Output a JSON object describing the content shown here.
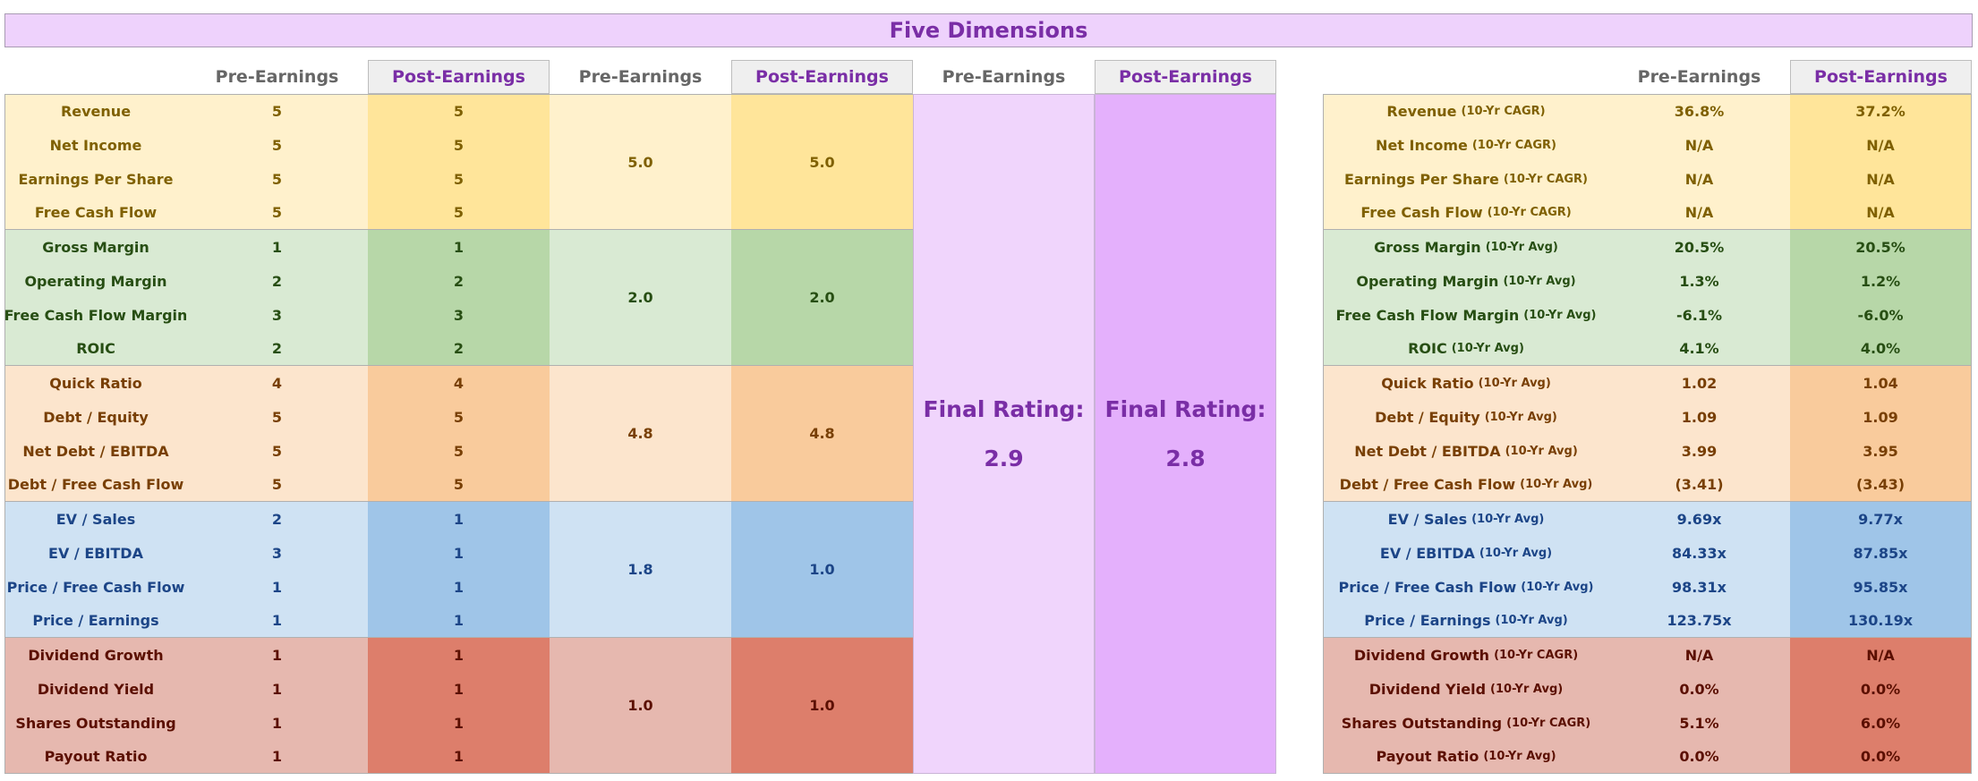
{
  "title": "Five Dimensions",
  "headers": {
    "pre": "Pre-Earnings",
    "post": "Post-Earnings"
  },
  "final_label": "Final Rating:",
  "final_pre": "2.9",
  "final_post": "2.8",
  "groups": [
    {
      "key": "growth",
      "color_a": "#fff1cc",
      "color_b": "#ffe59a",
      "text_color": "#7f6001",
      "avg_pre": "5.0",
      "avg_post": "5.0",
      "rows": [
        {
          "label": "Revenue",
          "pre": "5",
          "post": "5",
          "metric": "Revenue",
          "sub": "(10-Yr CAGR)",
          "val_pre": "36.8%",
          "val_post": "37.2%"
        },
        {
          "label": "Net Income",
          "pre": "5",
          "post": "5",
          "metric": "Net Income",
          "sub": "(10-Yr CAGR)",
          "val_pre": "N/A",
          "val_post": "N/A"
        },
        {
          "label": "Earnings Per Share",
          "pre": "5",
          "post": "5",
          "metric": "Earnings Per Share",
          "sub": "(10-Yr CAGR)",
          "val_pre": "N/A",
          "val_post": "N/A"
        },
        {
          "label": "Free Cash Flow",
          "pre": "5",
          "post": "5",
          "metric": "Free Cash Flow",
          "sub": "(10-Yr CAGR)",
          "val_pre": "N/A",
          "val_post": "N/A"
        }
      ]
    },
    {
      "key": "profitability",
      "color_a": "#d9ead3",
      "color_b": "#b7d7a8",
      "text_color": "#274e13",
      "avg_pre": "2.0",
      "avg_post": "2.0",
      "rows": [
        {
          "label": "Gross Margin",
          "pre": "1",
          "post": "1",
          "metric": "Gross Margin",
          "sub": "(10-Yr Avg)",
          "val_pre": "20.5%",
          "val_post": "20.5%"
        },
        {
          "label": "Operating Margin",
          "pre": "2",
          "post": "2",
          "metric": "Operating Margin",
          "sub": "(10-Yr Avg)",
          "val_pre": "1.3%",
          "val_post": "1.2%"
        },
        {
          "label": "Free Cash Flow Margin",
          "pre": "3",
          "post": "3",
          "metric": "Free Cash Flow Margin",
          "sub": "(10-Yr Avg)",
          "val_pre": "-6.1%",
          "val_post": "-6.0%"
        },
        {
          "label": "ROIC",
          "pre": "2",
          "post": "2",
          "metric": "ROIC",
          "sub": "(10-Yr Avg)",
          "val_pre": "4.1%",
          "val_post": "4.0%"
        }
      ]
    },
    {
      "key": "debt",
      "color_a": "#fce5cd",
      "color_b": "#f9cb9c",
      "text_color": "#783f04",
      "avg_pre": "4.8",
      "avg_post": "4.8",
      "rows": [
        {
          "label": "Quick Ratio",
          "pre": "4",
          "post": "4",
          "metric": "Quick Ratio",
          "sub": "(10-Yr Avg)",
          "val_pre": "1.02",
          "val_post": "1.04"
        },
        {
          "label": "Debt / Equity",
          "pre": "5",
          "post": "5",
          "metric": "Debt / Equity",
          "sub": "(10-Yr Avg)",
          "val_pre": "1.09",
          "val_post": "1.09"
        },
        {
          "label": "Net Debt / EBITDA",
          "pre": "5",
          "post": "5",
          "metric": "Net Debt / EBITDA",
          "sub": "(10-Yr Avg)",
          "val_pre": "3.99",
          "val_post": "3.95"
        },
        {
          "label": "Debt / Free Cash Flow",
          "pre": "5",
          "post": "5",
          "metric": "Debt / Free Cash Flow",
          "sub": "(10-Yr Avg)",
          "val_pre": "(3.41)",
          "val_post": "(3.43)"
        }
      ]
    },
    {
      "key": "valuation",
      "color_a": "#cfe2f3",
      "color_b": "#9fc5e8",
      "text_color": "#1c4587",
      "avg_pre": "1.8",
      "avg_post": "1.0",
      "rows": [
        {
          "label": "EV / Sales",
          "pre": "2",
          "post": "1",
          "metric": "EV / Sales",
          "sub": "(10-Yr Avg)",
          "val_pre": "9.69x",
          "val_post": "9.77x"
        },
        {
          "label": "EV / EBITDA",
          "pre": "3",
          "post": "1",
          "metric": "EV / EBITDA",
          "sub": "(10-Yr Avg)",
          "val_pre": "84.33x",
          "val_post": "87.85x"
        },
        {
          "label": "Price / Free Cash Flow",
          "pre": "1",
          "post": "1",
          "metric": "Price / Free Cash Flow",
          "sub": "(10-Yr Avg)",
          "val_pre": "98.31x",
          "val_post": "95.85x"
        },
        {
          "label": "Price / Earnings",
          "pre": "1",
          "post": "1",
          "metric": "Price / Earnings",
          "sub": "(10-Yr Avg)",
          "val_pre": "123.75x",
          "val_post": "130.19x"
        }
      ]
    },
    {
      "key": "dividends",
      "color_a": "#e6b8af",
      "color_b": "#dd7e6b",
      "text_color": "#5b0f00",
      "avg_pre": "1.0",
      "avg_post": "1.0",
      "rows": [
        {
          "label": "Dividend Growth",
          "pre": "1",
          "post": "1",
          "metric": "Dividend Growth",
          "sub": "(10-Yr CAGR)",
          "val_pre": "N/A",
          "val_post": "N/A"
        },
        {
          "label": "Dividend Yield",
          "pre": "1",
          "post": "1",
          "metric": "Dividend Yield",
          "sub": "(10-Yr Avg)",
          "val_pre": "0.0%",
          "val_post": "0.0%"
        },
        {
          "label": "Shares Outstanding",
          "pre": "1",
          "post": "1",
          "metric": "Shares Outstanding",
          "sub": "(10-Yr CAGR)",
          "val_pre": "5.1%",
          "val_post": "6.0%"
        },
        {
          "label": "Payout Ratio",
          "pre": "1",
          "post": "1",
          "metric": "Payout Ratio",
          "sub": "(10-Yr Avg)",
          "val_pre": "0.0%",
          "val_post": "0.0%"
        }
      ]
    }
  ]
}
